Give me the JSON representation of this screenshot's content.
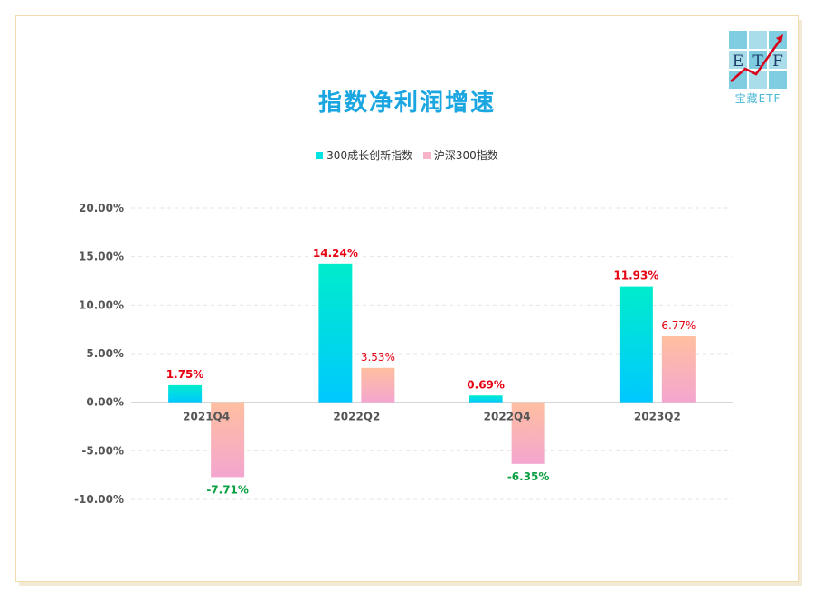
{
  "logo": {
    "letters": [
      "E",
      "T",
      "F"
    ],
    "text": "宝藏ETF",
    "color": "#4ab8d6",
    "arrow_color": "#d9001b"
  },
  "title": "指数净利润增速",
  "colors": {
    "title": "#1aa6e0",
    "positive_label": "#e60012",
    "negative_label": "#0aa043",
    "series1_top": "#00eccc",
    "series1_bottom": "#00c8ff",
    "series2_top": "#ffbfa0",
    "series2_bottom": "#f4a6cf"
  },
  "chart_data": {
    "type": "bar",
    "title": "指数净利润增速",
    "categories": [
      "2021Q4",
      "2022Q2",
      "2022Q4",
      "2023Q2"
    ],
    "series": [
      {
        "name": "300成长创新指数",
        "values": [
          1.75,
          14.24,
          0.69,
          11.93
        ],
        "labels": [
          "1.75%",
          "14.24%",
          "0.69%",
          "11.93%"
        ]
      },
      {
        "name": "沪深300指数",
        "values": [
          -7.71,
          3.53,
          -6.35,
          6.77
        ],
        "labels": [
          "-7.71%",
          "3.53%",
          "-6.35%",
          "6.77%"
        ]
      }
    ],
    "ylim": [
      -10,
      20
    ],
    "yticks": [
      20,
      15,
      10,
      5,
      0,
      -5,
      -10
    ],
    "ytick_labels": [
      "20.00%",
      "15.00%",
      "10.00%",
      "5.00%",
      "0.00%",
      "-5.00%",
      "-10.00%"
    ],
    "grid": true,
    "legend": "top-center"
  }
}
